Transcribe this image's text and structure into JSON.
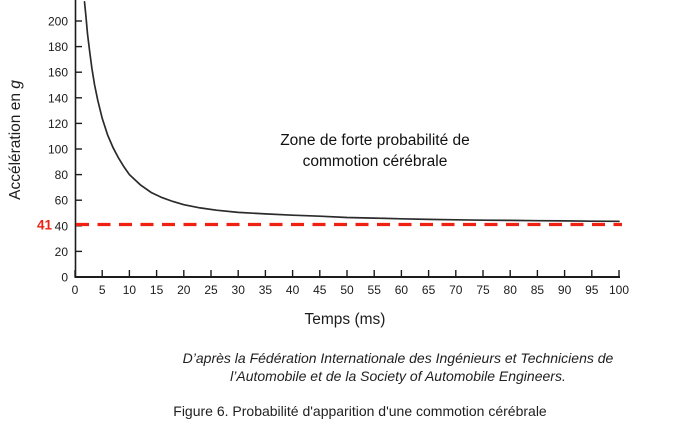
{
  "figure": {
    "source_line1": "D’après la Fédération Internationale des Ingénieurs et Techniciens de",
    "source_line2": "l’Automobile et de la Society of Automobile Engineers.",
    "caption": "Figure 6. Probabilité d'apparition d'une commotion cérébrale"
  },
  "chart_data": {
    "type": "line",
    "title": "",
    "xlabel": "Temps (ms)",
    "ylabel": "Accélération en g",
    "ylabel_prefix": "Accélération en ",
    "ylabel_unit": "g",
    "xlim": [
      0,
      100
    ],
    "ylim": [
      0,
      215
    ],
    "grid": false,
    "legend": "none",
    "x_ticks": [
      0,
      5,
      10,
      15,
      20,
      25,
      30,
      35,
      40,
      45,
      50,
      55,
      60,
      65,
      70,
      75,
      80,
      85,
      90,
      95,
      100
    ],
    "y_ticks": [
      0,
      20,
      40,
      60,
      80,
      100,
      120,
      140,
      160,
      180,
      200
    ],
    "annotation": {
      "line1": "Zone de forte probabilité de",
      "line2": "commotion cérébrale"
    },
    "threshold_line": {
      "value": 41,
      "label": "41",
      "color": "#ee2112",
      "style": "dashed"
    },
    "curve": {
      "color": "#2b2b2b",
      "x": [
        1.75,
        2,
        2.3,
        2.7,
        3.1,
        3.6,
        4.2,
        5,
        6,
        7,
        8,
        9,
        10,
        12,
        14,
        16,
        18,
        20,
        23,
        26,
        30,
        35,
        40,
        45,
        50,
        55,
        60,
        65,
        70,
        75,
        80,
        85,
        90,
        95,
        100
      ],
      "y": [
        215,
        204,
        190,
        176,
        163,
        150,
        138,
        124,
        111,
        101,
        93,
        86,
        80,
        72,
        66,
        62,
        59,
        56.5,
        54,
        52.2,
        50.5,
        49.3,
        48.3,
        47.5,
        46.5,
        46,
        45.5,
        45,
        44.7,
        44.4,
        44.2,
        44,
        43.8,
        43.6,
        43.5
      ]
    },
    "colors": {
      "axis": "#1c1c1c",
      "text": "#1c1c1c",
      "background": "#ffffff"
    }
  }
}
